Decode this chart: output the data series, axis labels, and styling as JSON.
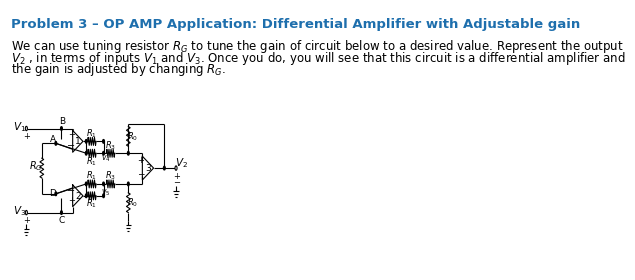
{
  "title": "Problem 3 – OP AMP Application: Differential Amplifier with Adjustable gain",
  "title_color": "#1e6fad",
  "title_fontsize": 9.5,
  "body_text_line1": "We can use tuning resistor $R_G$ to tune the gain of circuit below to a desired value. Represent the output",
  "body_text_line2": "$V_2$ , in terms of inputs $V_1$ and $V_3$. Once you do, you will see that this circuit is a differential amplifier and",
  "body_text_line3": "the gain is adjusted by changing $R_G$.",
  "body_fontsize": 8.5,
  "bg_color": "#ffffff",
  "line_color": "#000000",
  "text_color": "#000000"
}
